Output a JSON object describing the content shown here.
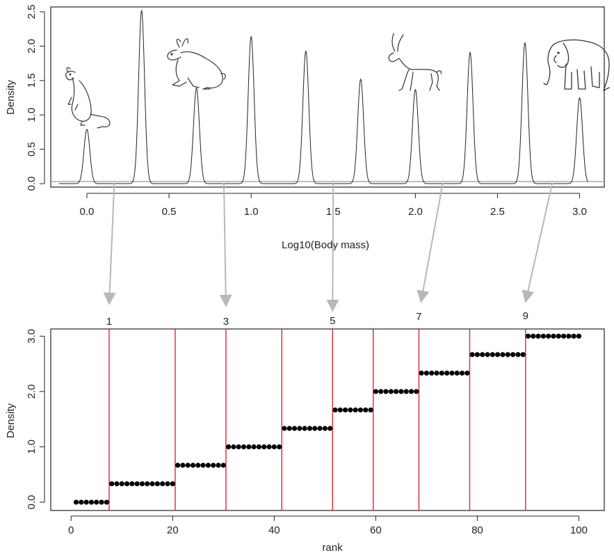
{
  "colors": {
    "line": "#222222",
    "zero_line": "#aaaaaa",
    "arrow": "#b8b8b8",
    "vline": "#e0242a",
    "point": "#000000"
  },
  "icons": [
    "mouse-icon",
    "rabbit-icon",
    "gazelle-icon",
    "elephant-icon"
  ],
  "chart_data": [
    {
      "type": "line",
      "xlabel": "Log10(Body mass)",
      "ylabel": "Density",
      "xlim": [
        -0.22,
        3.15
      ],
      "ylim": [
        -0.05,
        2.57
      ],
      "x_ticks": [
        "0.0",
        "0.5",
        "1.0",
        "1.5",
        "2.0",
        "2.5",
        "3.0"
      ],
      "y_ticks": [
        "0.0",
        "0.5",
        "1.0",
        "1.5",
        "2.0",
        "2.5"
      ],
      "peaks": [
        {
          "x": 0.0,
          "height": 0.79
        },
        {
          "x": 0.333,
          "height": 2.52
        },
        {
          "x": 0.667,
          "height": 1.39
        },
        {
          "x": 1.0,
          "height": 2.14
        },
        {
          "x": 1.333,
          "height": 1.93
        },
        {
          "x": 1.667,
          "height": 1.52
        },
        {
          "x": 2.0,
          "height": 1.37
        },
        {
          "x": 2.333,
          "height": 1.91
        },
        {
          "x": 2.667,
          "height": 2.05
        },
        {
          "x": 3.0,
          "height": 1.25
        }
      ],
      "peak_sd": 0.018
    },
    {
      "type": "scatter",
      "xlabel": "rank",
      "ylabel": "Density",
      "xlim": [
        -4,
        105
      ],
      "ylim": [
        -0.15,
        3.13
      ],
      "x_ticks": [
        "0",
        "20",
        "40",
        "60",
        "80",
        "100"
      ],
      "y_ticks": [
        "0.0",
        "1.0",
        "2.0",
        "3.0"
      ],
      "groups": [
        {
          "ranks": [
            1,
            7
          ],
          "value": 0.0
        },
        {
          "ranks": [
            8,
            20
          ],
          "value": 0.333
        },
        {
          "ranks": [
            21,
            30
          ],
          "value": 0.667
        },
        {
          "ranks": [
            31,
            41
          ],
          "value": 1.0
        },
        {
          "ranks": [
            42,
            51
          ],
          "value": 1.333
        },
        {
          "ranks": [
            52,
            59
          ],
          "value": 1.667
        },
        {
          "ranks": [
            60,
            68
          ],
          "value": 2.0
        },
        {
          "ranks": [
            69,
            78
          ],
          "value": 2.333
        },
        {
          "ranks": [
            79,
            89
          ],
          "value": 2.667
        },
        {
          "ranks": [
            90,
            100
          ],
          "value": 3.0
        }
      ],
      "breaks": [
        7,
        20,
        30,
        41,
        51,
        59,
        68,
        78,
        89
      ],
      "break_labels": [
        {
          "rank": 7,
          "label": "1"
        },
        {
          "rank": 30,
          "label": "3"
        },
        {
          "rank": 51,
          "label": "5"
        },
        {
          "rank": 68,
          "label": "7"
        },
        {
          "rank": 89,
          "label": "9"
        }
      ],
      "arrows": [
        {
          "from_x": 0.167,
          "to_rank": 7
        },
        {
          "from_x": 0.834,
          "to_rank": 30
        },
        {
          "from_x": 1.5,
          "to_rank": 51
        },
        {
          "from_x": 2.167,
          "to_rank": 68
        },
        {
          "from_x": 2.834,
          "to_rank": 89
        }
      ]
    }
  ]
}
